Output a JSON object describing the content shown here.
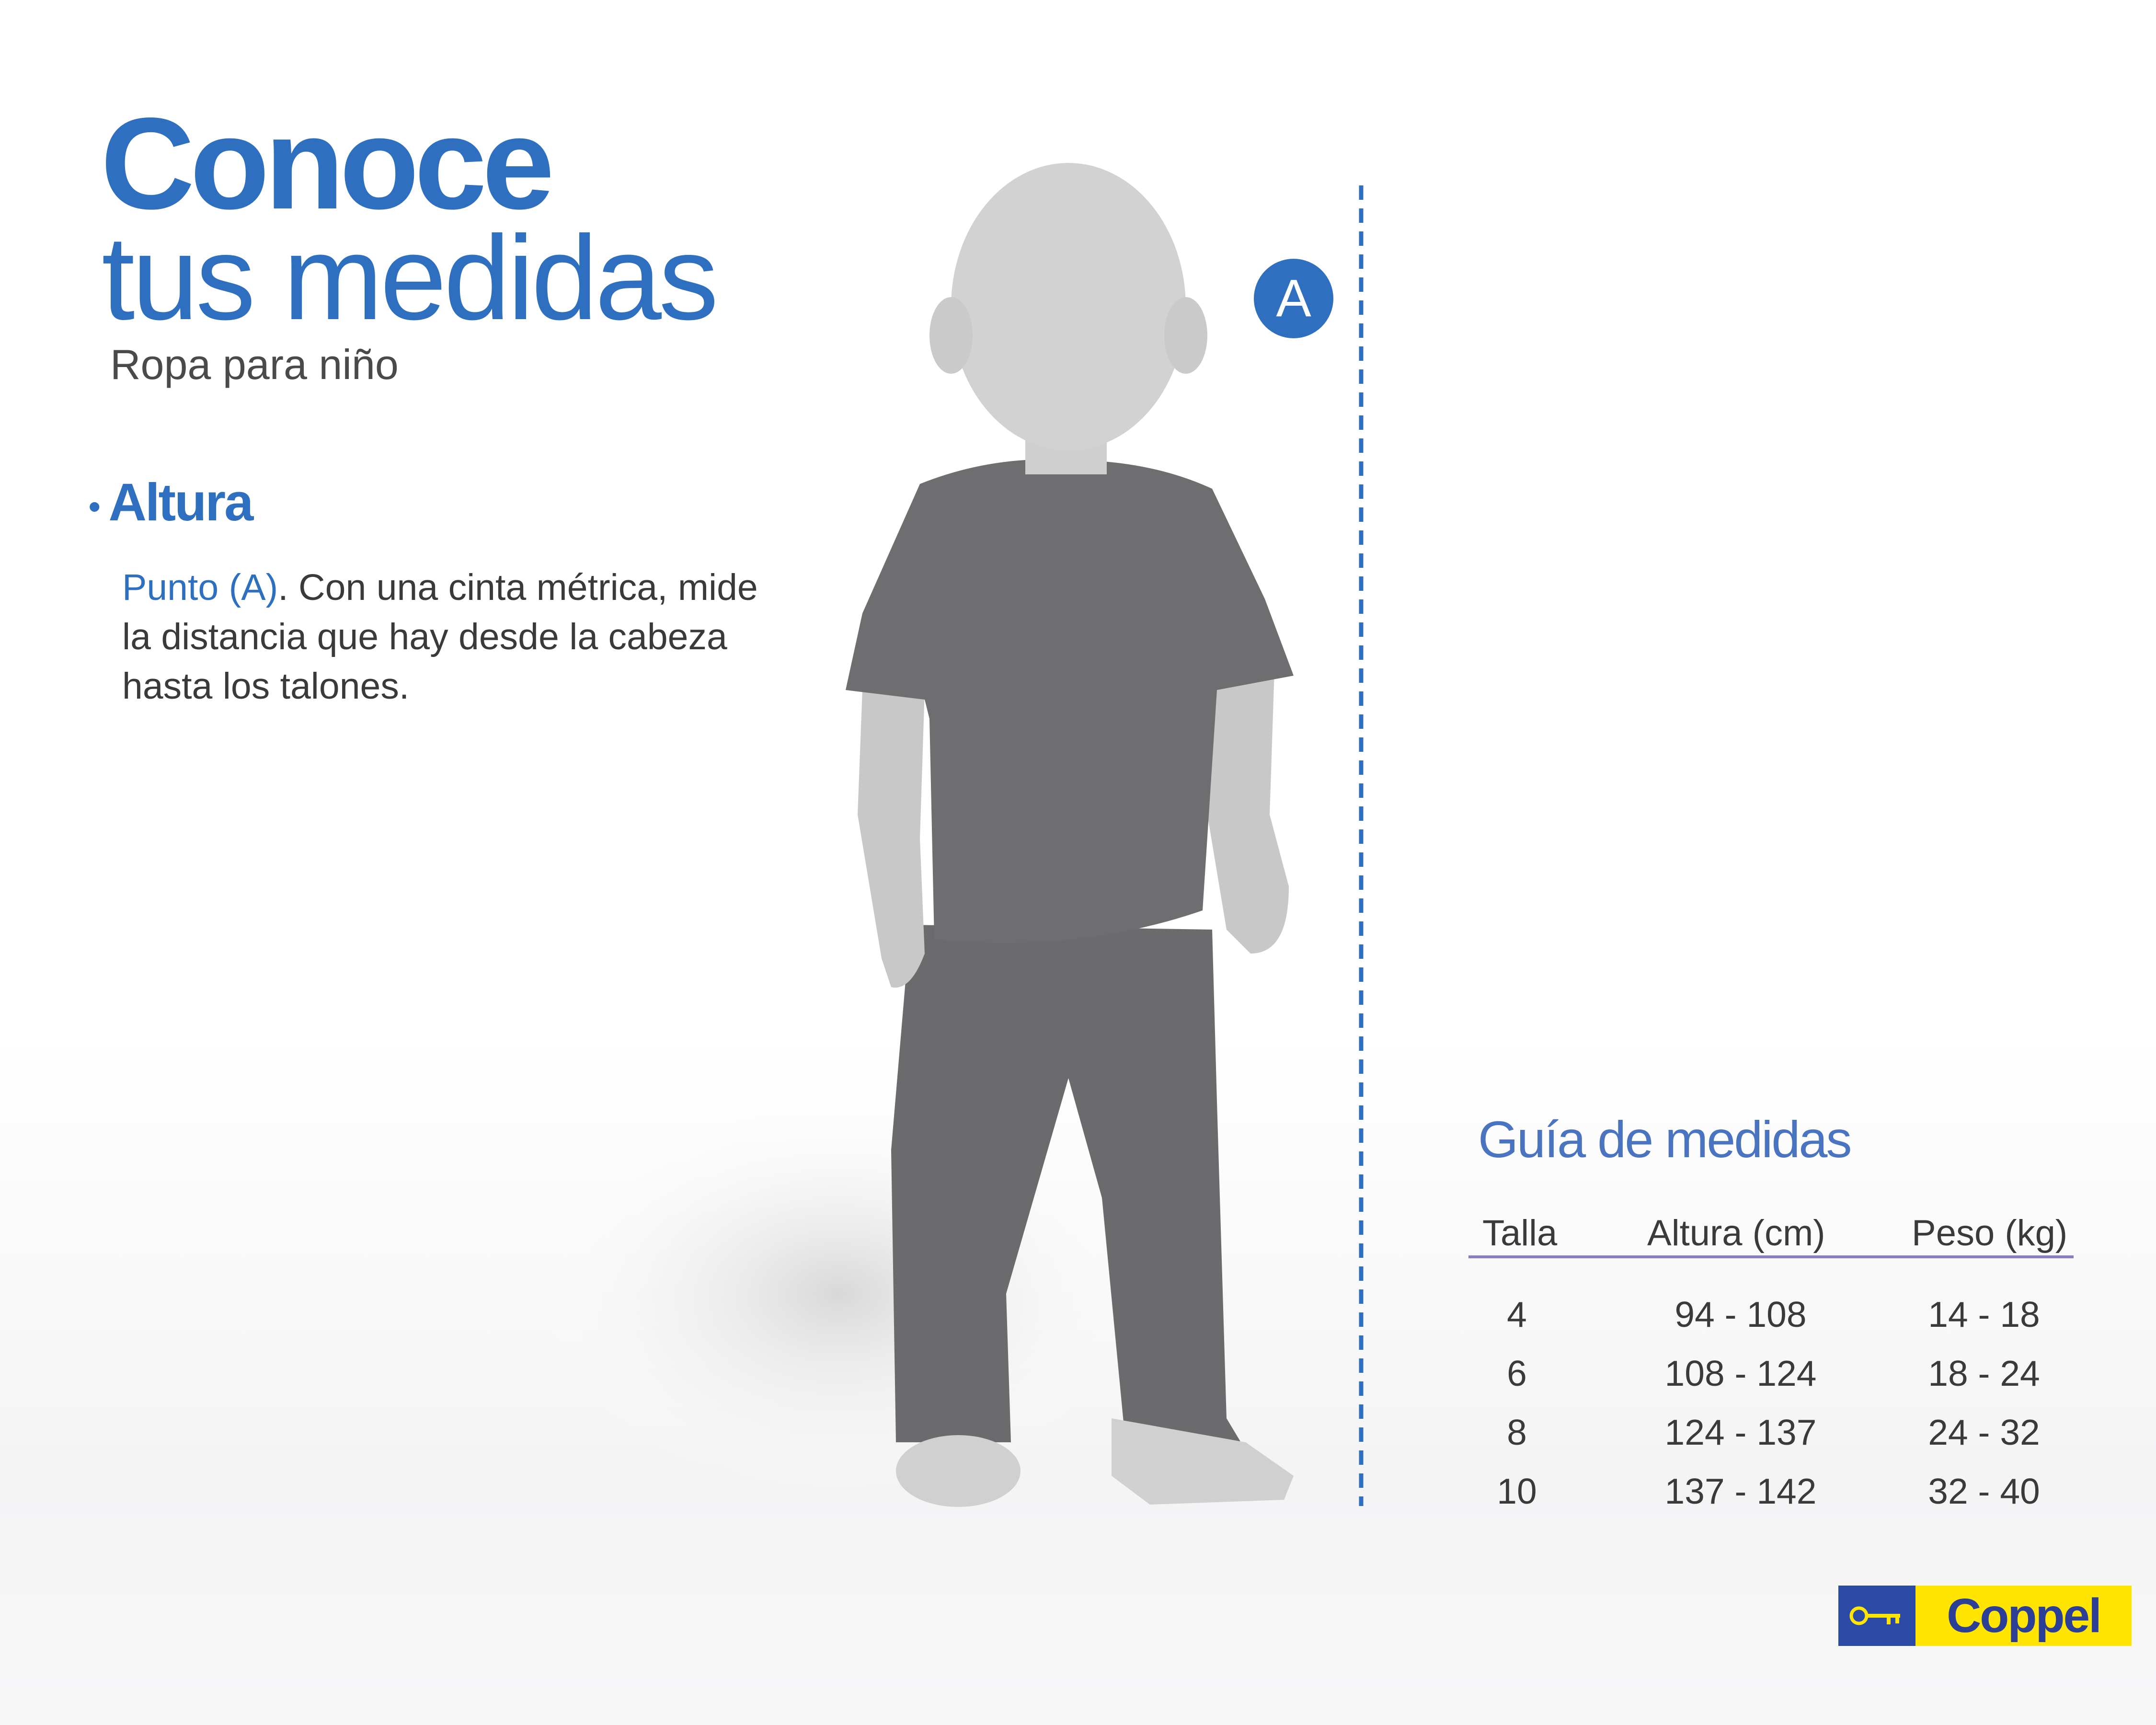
{
  "header": {
    "title_line1": "Conoce",
    "title_line2": "tus medidas",
    "subtitle": "Ropa para niño"
  },
  "section": {
    "bullet": "•",
    "heading": "Altura",
    "point_label": "Punto (A)",
    "description": ".  Con una cinta métrica, mide la distancia que hay desde la cabeza hasta los talones."
  },
  "marker": {
    "label": "A"
  },
  "guide": {
    "title": "Guía de medidas",
    "columns": [
      "Talla",
      "Altura (cm)",
      "Peso (kg)"
    ],
    "rows": [
      [
        "4",
        "94 - 108",
        "14 - 18"
      ],
      [
        "6",
        "108 - 124",
        "18 - 24"
      ],
      [
        "8",
        "124 - 137",
        "24 - 32"
      ],
      [
        "10",
        "137 - 142",
        "32 - 40"
      ]
    ]
  },
  "logo": {
    "text": "Coppel",
    "icon": "key-icon"
  },
  "colors": {
    "brand_blue": "#2f6fbf",
    "logo_blue": "#2a4aa6",
    "logo_yellow": "#ffe500",
    "rule": "#8c7cc4"
  }
}
